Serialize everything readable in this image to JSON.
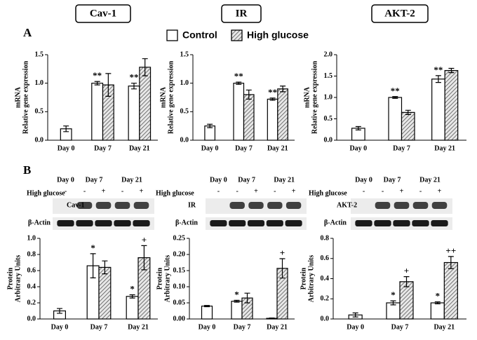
{
  "headers": [
    "Cav-1",
    "IR",
    "AKT-2"
  ],
  "panel_labels": [
    "A",
    "B"
  ],
  "legend": [
    "Control",
    "High glucose"
  ],
  "blots": [
    {
      "days": [
        "Day 0",
        "Day 7",
        "Day 21"
      ],
      "treatment": "High glucose",
      "signs": [
        "-",
        "-",
        "+",
        "-",
        "+"
      ],
      "protein": "Cav-1",
      "loading": "β-Actin"
    },
    {
      "days": [
        "Day 0",
        "Day 7",
        "Day 21"
      ],
      "treatment": "High glucose",
      "signs": [
        "-",
        "-",
        "+",
        "-",
        "+"
      ],
      "protein": "IR",
      "loading": "β-Actin"
    },
    {
      "days": [
        "Day 0",
        "Day 7",
        "Day 21"
      ],
      "treatment": "High glucose",
      "signs": [
        "-",
        "-",
        "+",
        "-",
        "+"
      ],
      "protein": "AKT-2",
      "loading": "β-Actin"
    }
  ],
  "chart_data": [
    {
      "type": "bar",
      "ylabel": [
        "mRNA",
        "Relative gene expression"
      ],
      "categories": [
        "Day 0",
        "Day 7",
        "Day 21"
      ],
      "ylim": [
        0,
        1.5
      ],
      "yticks": [
        {
          "value": 0,
          "label": "0.0"
        },
        {
          "value": 0.5,
          "label": "0.5"
        },
        {
          "value": 1,
          "label": "1.0"
        },
        {
          "value": 1.5,
          "label": "1.5"
        }
      ],
      "series": [
        {
          "color": "#ffffff",
          "values": [
            0.2,
            1.0,
            0.95
          ],
          "errors": [
            0.05,
            0.03,
            0.05
          ]
        },
        {
          "color": "#9a9a9a",
          "hatch": true,
          "values": [
            null,
            0.97,
            1.28
          ],
          "errors": [
            null,
            0.2,
            0.15
          ]
        }
      ],
      "annotations": [
        {
          "text": "**",
          "series": 0,
          "index": 1
        },
        {
          "text": "**",
          "series": 0,
          "index": 2
        }
      ]
    },
    {
      "type": "bar",
      "ylabel": [
        "mRNA",
        "Relative gene expression"
      ],
      "categories": [
        "Day 0",
        "Day 7",
        "Day 21"
      ],
      "ylim": [
        0,
        1.5
      ],
      "yticks": [
        {
          "value": 0,
          "label": "0.0"
        },
        {
          "value": 0.5,
          "label": "0.5"
        },
        {
          "value": 1,
          "label": "1.0"
        },
        {
          "value": 1.5,
          "label": "1.5"
        }
      ],
      "series": [
        {
          "color": "#ffffff",
          "values": [
            0.25,
            1.0,
            0.72
          ],
          "errors": [
            0.03,
            0.02,
            0.02
          ]
        },
        {
          "color": "#9a9a9a",
          "hatch": true,
          "values": [
            null,
            0.8,
            0.9
          ],
          "errors": [
            null,
            0.08,
            0.05
          ]
        }
      ],
      "annotations": [
        {
          "text": "**",
          "series": 0,
          "index": 1
        },
        {
          "text": "**",
          "series": 0,
          "index": 2
        }
      ]
    },
    {
      "type": "bar",
      "ylabel": [
        "mRNA",
        "Relative gene expression"
      ],
      "categories": [
        "Day 0",
        "Day 7",
        "Day 21"
      ],
      "ylim": [
        0,
        2
      ],
      "yticks": [
        {
          "value": 0,
          "label": "0.0"
        },
        {
          "value": 0.5,
          "label": "0.5"
        },
        {
          "value": 1,
          "label": "1.0"
        },
        {
          "value": 1.5,
          "label": "1.5"
        },
        {
          "value": 2,
          "label": "2.0"
        }
      ],
      "series": [
        {
          "color": "#ffffff",
          "values": [
            0.28,
            1.0,
            1.43
          ],
          "errors": [
            0.04,
            0.02,
            0.08
          ]
        },
        {
          "color": "#9a9a9a",
          "hatch": true,
          "values": [
            null,
            0.65,
            1.63
          ],
          "errors": [
            null,
            0.05,
            0.05
          ]
        }
      ],
      "annotations": [
        {
          "text": "**",
          "series": 0,
          "index": 1
        },
        {
          "text": "**",
          "series": 0,
          "index": 2
        }
      ]
    },
    {
      "type": "bar",
      "ylabel": [
        "Protein",
        "Arbitrary Units"
      ],
      "categories": [
        "Day 0",
        "Day 7",
        "Day 21"
      ],
      "ylim": [
        0,
        1
      ],
      "yticks": [
        {
          "value": 0,
          "label": "0.0"
        },
        {
          "value": 0.2,
          "label": "0.2"
        },
        {
          "value": 0.4,
          "label": "0.4"
        },
        {
          "value": 0.6,
          "label": "0.6"
        },
        {
          "value": 0.8,
          "label": "0.8"
        },
        {
          "value": 1,
          "label": "1.0"
        }
      ],
      "series": [
        {
          "color": "#ffffff",
          "values": [
            0.1,
            0.66,
            0.28
          ],
          "errors": [
            0.03,
            0.15,
            0.02
          ]
        },
        {
          "color": "#9a9a9a",
          "hatch": true,
          "values": [
            null,
            0.64,
            0.76
          ],
          "errors": [
            null,
            0.08,
            0.15
          ]
        }
      ],
      "annotations": [
        {
          "text": "*",
          "series": 0,
          "index": 1
        },
        {
          "text": "*",
          "series": 0,
          "index": 2
        },
        {
          "text": "+",
          "series": 1,
          "index": 2
        }
      ]
    },
    {
      "type": "bar",
      "ylabel": [
        "Protein",
        "Arbitrary Units"
      ],
      "categories": [
        "Day 0",
        "Day 7",
        "Day 21"
      ],
      "ylim": [
        0,
        0.25
      ],
      "yticks": [
        {
          "value": 0,
          "label": "0.00"
        },
        {
          "value": 0.05,
          "label": "0.05"
        },
        {
          "value": 0.1,
          "label": "0.10"
        },
        {
          "value": 0.15,
          "label": "0.15"
        },
        {
          "value": 0.2,
          "label": "0.20"
        },
        {
          "value": 0.25,
          "label": "0.25"
        }
      ],
      "series": [
        {
          "color": "#ffffff",
          "values": [
            0.04,
            0.055,
            0.002
          ],
          "errors": [
            0.002,
            0.003,
            0.001
          ]
        },
        {
          "color": "#9a9a9a",
          "hatch": true,
          "values": [
            null,
            0.065,
            0.157
          ],
          "errors": [
            null,
            0.015,
            0.03
          ]
        }
      ],
      "annotations": [
        {
          "text": "*",
          "series": 0,
          "index": 1
        },
        {
          "text": "+",
          "series": 1,
          "index": 2
        }
      ]
    },
    {
      "type": "bar",
      "ylabel": [
        "Protein",
        "Arbitrary Units"
      ],
      "categories": [
        "Day 0",
        "Day 7",
        "Day 21"
      ],
      "ylim": [
        0,
        0.8
      ],
      "yticks": [
        {
          "value": 0,
          "label": "0.0"
        },
        {
          "value": 0.2,
          "label": "0.2"
        },
        {
          "value": 0.4,
          "label": "0.4"
        },
        {
          "value": 0.6,
          "label": "0.6"
        },
        {
          "value": 0.8,
          "label": "0.8"
        }
      ],
      "series": [
        {
          "color": "#ffffff",
          "values": [
            0.04,
            0.16,
            0.16
          ],
          "errors": [
            0.02,
            0.02,
            0.01
          ]
        },
        {
          "color": "#9a9a9a",
          "hatch": true,
          "values": [
            null,
            0.37,
            0.56
          ],
          "errors": [
            null,
            0.05,
            0.06
          ]
        }
      ],
      "annotations": [
        {
          "text": "*",
          "series": 0,
          "index": 1
        },
        {
          "text": "*",
          "series": 0,
          "index": 2
        },
        {
          "text": "+",
          "series": 1,
          "index": 1
        },
        {
          "text": "++",
          "series": 1,
          "index": 2
        }
      ]
    }
  ]
}
